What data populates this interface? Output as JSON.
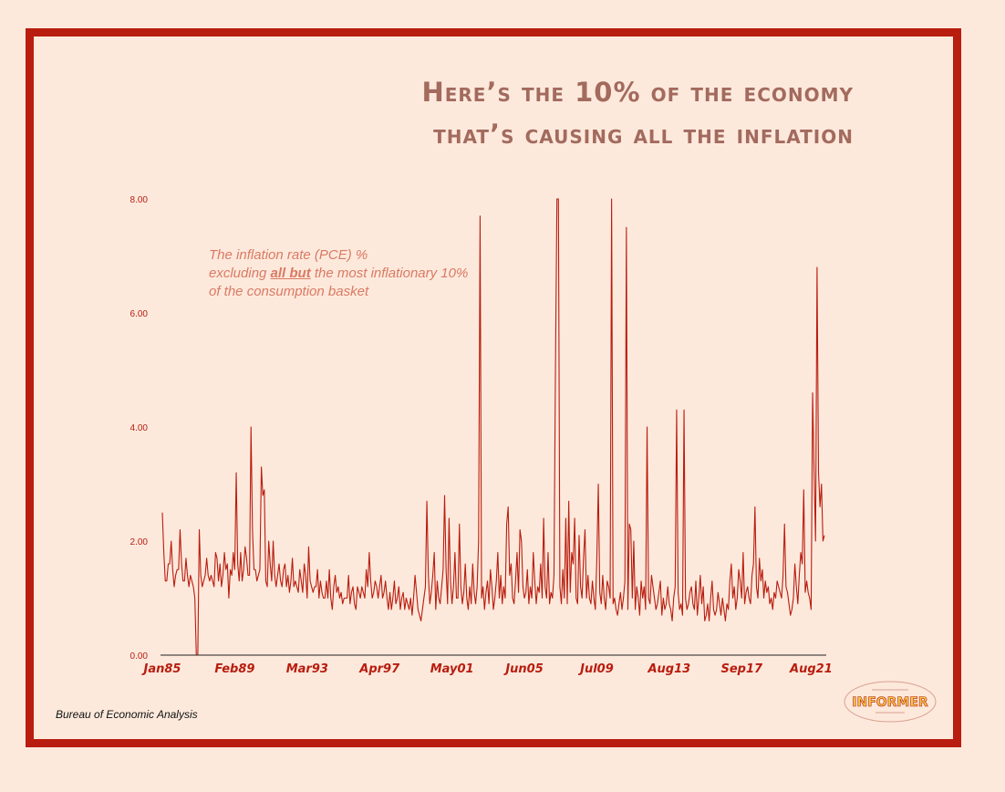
{
  "title": {
    "line1": "Here’s the 10% of the economy",
    "line2": "that’s causing all the inflation"
  },
  "annotation": {
    "line1": "The inflation rate (PCE) %",
    "line2_pre": "excluding ",
    "line2_em": "all but",
    "line2_post": " the most inflationary 10%",
    "line3": "of the consumption basket"
  },
  "source": "Bureau of Economic Analysis",
  "logo": {
    "word": "INFORMER"
  },
  "colors": {
    "accent": "#b81d0f",
    "background": "#fde9dc",
    "title": "#a36a5e",
    "annotation": "#d97a64"
  },
  "chart_data": {
    "type": "line",
    "title": "",
    "xlabel": "",
    "ylabel": "",
    "ylim": [
      0,
      8
    ],
    "yticks": [
      "0.00",
      "2.00",
      "4.00",
      "6.00",
      "8.00"
    ],
    "xtick_labels": [
      "Jan85",
      "Feb89",
      "Mar93",
      "Apr97",
      "May01",
      "Jun05",
      "Jul09",
      "Aug13",
      "Sep17",
      "Aug21"
    ],
    "xtick_month_index": [
      0,
      49,
      98,
      147,
      196,
      245,
      294,
      343,
      392,
      439
    ],
    "x_start": "Jan85",
    "x_end": "Aug21",
    "grid": false,
    "legend": "none",
    "series": [
      {
        "name": "",
        "values": [
          2.5,
          1.8,
          1.3,
          1.3,
          1.6,
          1.6,
          2.0,
          1.5,
          1.2,
          1.4,
          1.5,
          1.5,
          2.2,
          1.6,
          1.3,
          1.3,
          1.7,
          1.4,
          1.2,
          1.4,
          1.3,
          1.2,
          1.0,
          0.0,
          0.0,
          2.2,
          1.4,
          1.2,
          1.3,
          1.4,
          1.7,
          1.4,
          1.3,
          1.4,
          1.3,
          1.2,
          1.8,
          1.7,
          1.3,
          1.6,
          1.2,
          1.4,
          1.8,
          1.5,
          1.6,
          1.0,
          1.5,
          1.4,
          1.8,
          1.5,
          3.2,
          1.6,
          1.3,
          1.8,
          1.3,
          1.5,
          1.9,
          1.7,
          1.4,
          1.4,
          4.0,
          2.2,
          1.5,
          1.5,
          1.3,
          1.4,
          1.5,
          3.3,
          2.8,
          2.9,
          1.3,
          1.2,
          2.0,
          1.6,
          1.3,
          2.0,
          1.4,
          1.2,
          1.4,
          1.6,
          1.3,
          1.2,
          1.5,
          1.6,
          1.2,
          1.4,
          1.1,
          1.3,
          1.7,
          1.2,
          1.3,
          1.2,
          1.1,
          1.5,
          1.3,
          1.1,
          1.6,
          1.4,
          1.0,
          1.9,
          1.3,
          1.2,
          1.1,
          1.2,
          1.2,
          1.5,
          1.0,
          1.3,
          1.1,
          1.0,
          1.0,
          1.3,
          1.0,
          1.5,
          1.0,
          0.8,
          1.2,
          1.4,
          1.1,
          1.2,
          1.0,
          1.1,
          0.9,
          1.0,
          1.0,
          1.0,
          1.4,
          0.9,
          1.1,
          1.2,
          0.9,
          0.8,
          1.2,
          1.1,
          1.0,
          1.2,
          1.1,
          1.0,
          1.5,
          1.2,
          1.8,
          1.3,
          1.0,
          1.1,
          1.3,
          1.2,
          1.0,
          1.2,
          1.4,
          1.0,
          1.1,
          1.3,
          1.0,
          0.8,
          1.1,
          0.8,
          1.0,
          1.3,
          0.9,
          1.0,
          1.2,
          0.8,
          1.0,
          1.1,
          0.8,
          1.0,
          0.9,
          0.8,
          1.0,
          0.7,
          1.0,
          1.4,
          1.1,
          0.8,
          0.7,
          0.6,
          0.8,
          1.0,
          1.2,
          2.7,
          1.4,
          0.9,
          1.1,
          1.4,
          1.8,
          0.8,
          1.3,
          1.0,
          0.9,
          1.2,
          1.5,
          2.8,
          1.5,
          0.9,
          2.4,
          1.3,
          0.9,
          1.2,
          1.8,
          1.0,
          1.0,
          2.3,
          1.2,
          0.9,
          1.1,
          1.6,
          1.0,
          0.8,
          1.2,
          0.9,
          1.6,
          1.1,
          0.9,
          1.2,
          2.0,
          7.7,
          1.0,
          1.2,
          0.8,
          1.1,
          1.3,
          0.9,
          1.5,
          1.2,
          0.8,
          1.0,
          1.3,
          1.8,
          1.0,
          1.4,
          0.9,
          1.2,
          1.0,
          2.3,
          2.6,
          1.4,
          1.6,
          1.0,
          0.9,
          1.3,
          1.8,
          1.1,
          2.2,
          2.0,
          1.2,
          1.0,
          1.1,
          1.5,
          0.9,
          1.2,
          1.0,
          1.8,
          1.3,
          0.9,
          1.2,
          1.1,
          1.6,
          1.0,
          2.4,
          1.2,
          1.0,
          1.8,
          0.9,
          1.1,
          1.0,
          1.4,
          5.0,
          8.1,
          8.1,
          1.2,
          0.9,
          1.5,
          1.0,
          2.4,
          0.9,
          2.7,
          1.1,
          1.8,
          1.6,
          2.4,
          1.0,
          0.9,
          2.1,
          1.2,
          1.0,
          1.7,
          2.2,
          1.0,
          1.4,
          1.0,
          0.9,
          1.3,
          1.0,
          0.8,
          1.7,
          3.0,
          1.1,
          0.9,
          1.4,
          1.0,
          0.8,
          1.3,
          1.2,
          1.0,
          8.0,
          0.9,
          1.0,
          0.8,
          0.7,
          0.9,
          1.1,
          0.8,
          1.0,
          1.3,
          7.5,
          0.8,
          2.3,
          2.2,
          1.0,
          2.0,
          0.8,
          1.2,
          1.0,
          0.7,
          1.3,
          1.0,
          1.2,
          0.8,
          4.0,
          1.0,
          0.9,
          1.4,
          1.2,
          1.0,
          0.8,
          0.9,
          1.1,
          1.3,
          0.7,
          1.0,
          0.8,
          0.9,
          1.2,
          0.9,
          0.8,
          0.6,
          1.0,
          1.2,
          4.3,
          1.1,
          0.8,
          0.9,
          0.7,
          4.3,
          1.0,
          0.8,
          0.9,
          1.1,
          1.2,
          0.9,
          0.8,
          1.3,
          0.7,
          1.0,
          1.4,
          0.9,
          1.2,
          0.6,
          0.7,
          0.9,
          0.6,
          1.0,
          1.3,
          0.8,
          0.7,
          0.8,
          1.1,
          0.9,
          0.7,
          1.0,
          0.8,
          0.6,
          0.9,
          0.8,
          1.3,
          1.6,
          1.0,
          1.2,
          0.8,
          1.0,
          1.5,
          1.3,
          1.0,
          1.8,
          0.9,
          1.1,
          1.2,
          1.0,
          0.9,
          1.4,
          1.6,
          2.6,
          1.2,
          1.0,
          1.7,
          1.3,
          1.5,
          1.0,
          1.3,
          1.1,
          1.2,
          0.9,
          1.0,
          0.8,
          1.1,
          1.0,
          1.3,
          1.2,
          1.1,
          1.0,
          1.4,
          2.3,
          1.2,
          1.1,
          0.9,
          0.7,
          0.8,
          1.0,
          1.6,
          1.2,
          0.9,
          1.4,
          1.8,
          1.6,
          2.9,
          1.1,
          1.3,
          1.1,
          1.0,
          0.8,
          4.6,
          3.2,
          2.0,
          6.8,
          3.2,
          2.6,
          3.0,
          2.0,
          2.1
        ]
      }
    ]
  }
}
